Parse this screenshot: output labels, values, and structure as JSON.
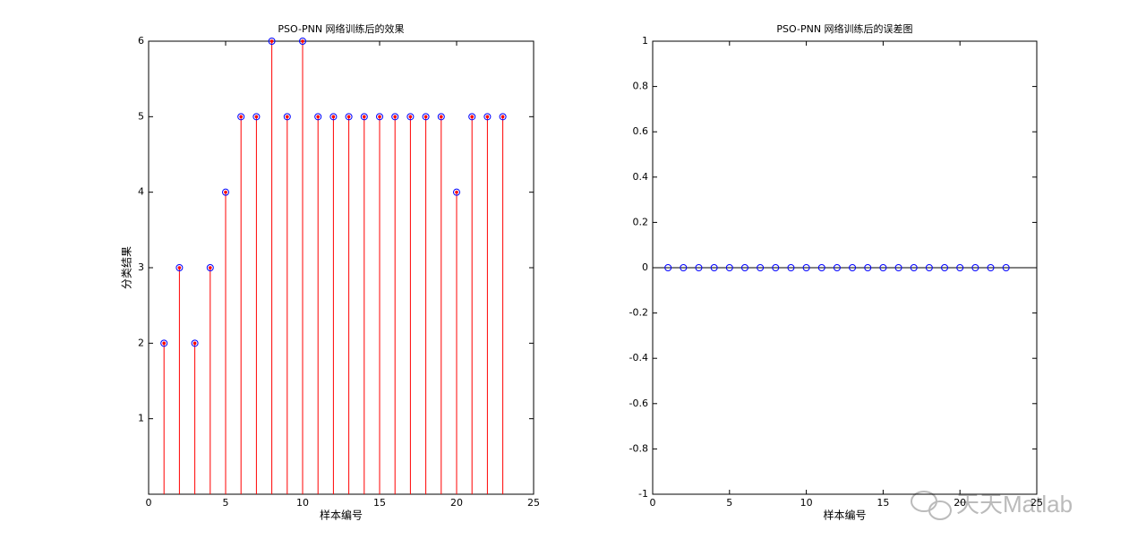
{
  "chart_data": [
    {
      "type": "stem",
      "title": "PSO-PNN 网络训练后的效果",
      "xlabel": "样本编号",
      "ylabel": "分类结果",
      "x": [
        1,
        2,
        3,
        4,
        5,
        6,
        7,
        8,
        9,
        10,
        11,
        12,
        13,
        14,
        15,
        16,
        17,
        18,
        19,
        20,
        21,
        22,
        23
      ],
      "values": [
        2,
        3,
        2,
        3,
        4,
        5,
        5,
        6,
        5,
        6,
        5,
        5,
        5,
        5,
        5,
        5,
        5,
        5,
        5,
        4,
        5,
        5,
        5
      ],
      "color": "#ff0000",
      "marker_color": "#0000ff",
      "xlim": [
        0,
        25
      ],
      "xticks": [
        0,
        5,
        10,
        15,
        20,
        25
      ],
      "ylim": [
        0,
        6
      ],
      "yticks": [
        1,
        2,
        3,
        4,
        5,
        6
      ]
    },
    {
      "type": "stem",
      "title": "PSO-PNN 网络训练后的误差图",
      "xlabel": "样本编号",
      "x": [
        1,
        2,
        3,
        4,
        5,
        6,
        7,
        8,
        9,
        10,
        11,
        12,
        13,
        14,
        15,
        16,
        17,
        18,
        19,
        20,
        21,
        22,
        23
      ],
      "values": [
        0,
        0,
        0,
        0,
        0,
        0,
        0,
        0,
        0,
        0,
        0,
        0,
        0,
        0,
        0,
        0,
        0,
        0,
        0,
        0,
        0,
        0,
        0
      ],
      "color": "#0000ff",
      "marker_color": "#0000ff",
      "xlim": [
        0,
        25
      ],
      "xticks": [
        0,
        5,
        10,
        15,
        20,
        25
      ],
      "ylim": [
        -1,
        1
      ],
      "yticks": [
        -1,
        -0.8,
        -0.6,
        -0.4,
        -0.2,
        0,
        0.2,
        0.4,
        0.6,
        0.8,
        1
      ]
    }
  ],
  "watermark": "天天Matlab"
}
